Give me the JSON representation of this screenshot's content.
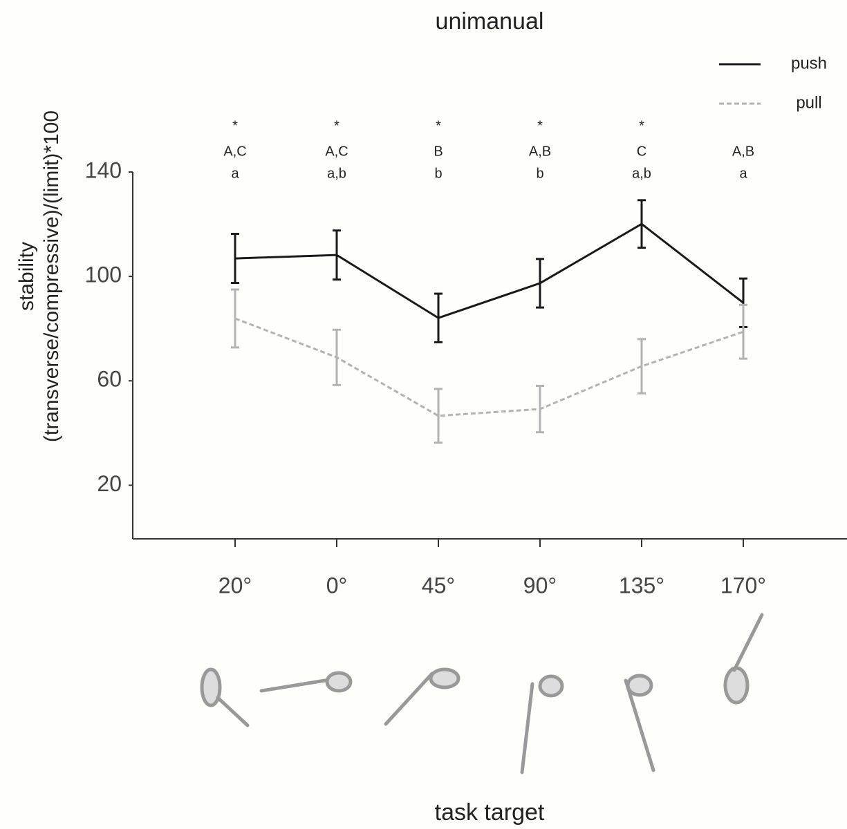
{
  "chart_data": {
    "type": "line",
    "title": "unimanual",
    "xlabel": "task target",
    "ylabel": [
      "stability",
      "(transverse/compressive)/(limit)*100"
    ],
    "categories": [
      "20°",
      "0°",
      "45°",
      "90°",
      "135°",
      "170°"
    ],
    "series": [
      {
        "name": "push",
        "color": "#1a1a1a",
        "dash": false,
        "values": [
          106.9,
          108.2,
          84.1,
          97.4,
          120.1,
          89.9
        ],
        "errors": [
          9.4,
          9.4,
          9.3,
          9.3,
          9.1,
          9.3
        ]
      },
      {
        "name": "pull",
        "color": "#b3b3b3",
        "dash": true,
        "values": [
          83.9,
          69.0,
          46.6,
          49.2,
          65.6,
          78.8
        ],
        "errors": [
          11.1,
          10.6,
          10.3,
          8.9,
          10.4,
          10.3
        ]
      }
    ],
    "significance": [
      "*",
      "*",
      "*",
      "*",
      "*",
      null
    ],
    "upper_letters": [
      "A,C",
      "A,C",
      "B",
      "A,B",
      "C",
      "A,B"
    ],
    "lower_letters": [
      "a",
      "a,b",
      "b",
      "b",
      "a,b",
      "a"
    ],
    "ylim": [
      0,
      140
    ],
    "yticks": [
      20,
      60,
      100,
      140
    ],
    "grid": false,
    "legend": "top-right"
  }
}
